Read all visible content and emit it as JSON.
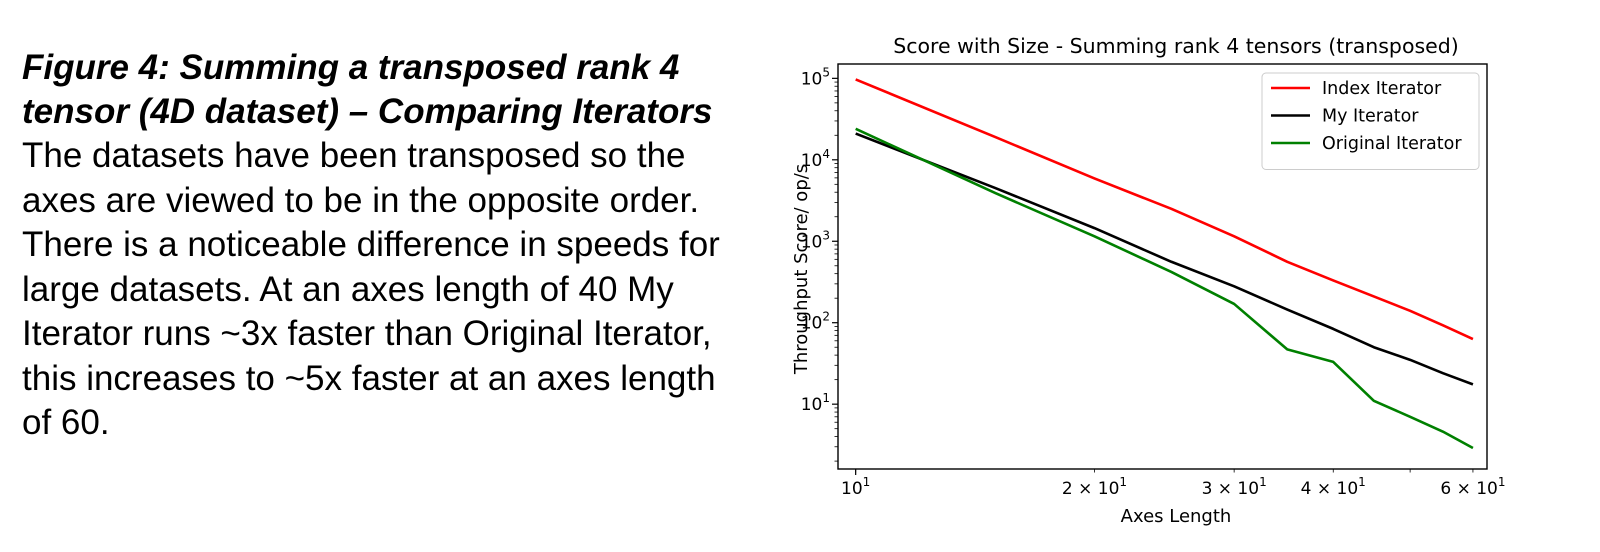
{
  "caption": {
    "title": "Figure 4: Summing a transposed rank 4 tensor (4D dataset) – Comparing Iterators",
    "body": "The datasets have been transposed so the axes are viewed to be in the opposite order. There is a noticeable difference in speeds for large datasets. At an axes length of 40 My Iterator runs ~3x faster than Original Iterator, this increases to ~5x faster at an axes length of 60."
  },
  "chart_data": {
    "type": "line",
    "title": "Score with Size - Summing rank 4 tensors (transposed)",
    "xlabel": "Axes Length",
    "ylabel": "Throughput Score/ op/s",
    "xscale": "log",
    "yscale": "log",
    "xlim": [
      9.5,
      62.5
    ],
    "ylim": [
      1.6,
      150000
    ],
    "x_ticks": [
      {
        "value": 10,
        "base": "10",
        "exp": "1",
        "mantissa": ""
      },
      {
        "value": 20,
        "base": "10",
        "exp": "1",
        "mantissa": "2 × "
      },
      {
        "value": 30,
        "base": "10",
        "exp": "1",
        "mantissa": "3 × "
      },
      {
        "value": 40,
        "base": "10",
        "exp": "1",
        "mantissa": "4 × "
      },
      {
        "value": 60,
        "base": "10",
        "exp": "1",
        "mantissa": "6 × "
      }
    ],
    "y_ticks": [
      {
        "value": 10,
        "base": "10",
        "exp": "1"
      },
      {
        "value": 100,
        "base": "10",
        "exp": "2"
      },
      {
        "value": 1000,
        "base": "10",
        "exp": "3"
      },
      {
        "value": 10000,
        "base": "10",
        "exp": "4"
      },
      {
        "value": 100000,
        "base": "10",
        "exp": "5"
      }
    ],
    "legend_position": "top-right",
    "grid": false,
    "series": [
      {
        "name": "Index Iterator",
        "color": "#ff0000",
        "x": [
          10,
          15,
          20,
          25,
          30,
          35,
          40,
          45,
          50,
          55,
          60
        ],
        "y": [
          97000,
          19000,
          5900,
          2500,
          1150,
          560,
          330,
          210,
          140,
          93,
          63
        ]
      },
      {
        "name": "My Iterator",
        "color": "#000000",
        "x": [
          10,
          15,
          20,
          25,
          30,
          35,
          40,
          45,
          50,
          55,
          60
        ],
        "y": [
          21000,
          4500,
          1450,
          560,
          280,
          145,
          84,
          50,
          35,
          24,
          17.5
        ]
      },
      {
        "name": "Original Iterator",
        "color": "#008000",
        "x": [
          10,
          15,
          20,
          25,
          30,
          35,
          40,
          45,
          50,
          55,
          60
        ],
        "y": [
          24000,
          3900,
          1150,
          420,
          170,
          47,
          33,
          11,
          7,
          4.6,
          2.9
        ]
      }
    ]
  }
}
